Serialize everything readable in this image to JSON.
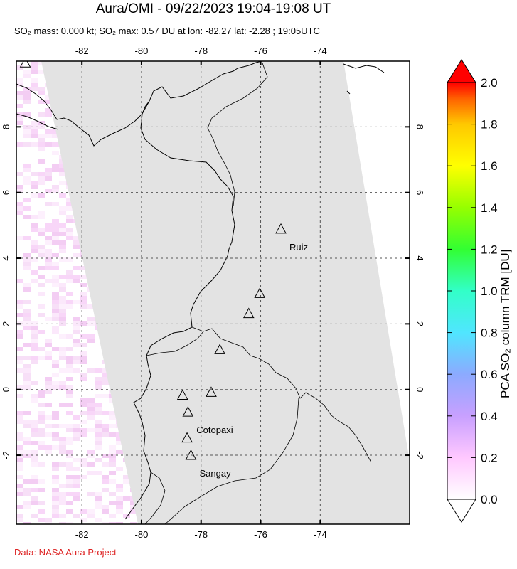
{
  "header": {
    "title": "Aura/OMI - 09/22/2023 19:04-19:08 UT",
    "subtitle": "SO₂ mass: 0.000 kt; SO₂ max: 0.57 DU at lon: -82.27 lat: -2.28 ; 19:05UTC"
  },
  "map": {
    "lon_ticks": [
      "-82",
      "-80",
      "-78",
      "-76",
      "-74"
    ],
    "lat_ticks": [
      "8",
      "6",
      "4",
      "2",
      "0",
      "-2"
    ],
    "lon_range": [
      -84.2,
      -71.0
    ],
    "lat_range": [
      -4.1,
      10.0
    ],
    "swath_color": "#e3e3e3",
    "volcanoes": [
      {
        "name": "Ruiz",
        "lon": -75.32,
        "lat": 4.89,
        "labeled": true
      },
      {
        "name": "",
        "lon": -76.03,
        "lat": 2.93,
        "labeled": false
      },
      {
        "name": "",
        "lon": -76.4,
        "lat": 2.32,
        "labeled": false
      },
      {
        "name": "",
        "lon": -77.37,
        "lat": 1.22,
        "labeled": false
      },
      {
        "name": "",
        "lon": -77.66,
        "lat": -0.08,
        "labeled": false
      },
      {
        "name": "",
        "lon": -78.62,
        "lat": -0.17,
        "labeled": false
      },
      {
        "name": "Cotopaxi",
        "lon": -78.44,
        "lat": -0.68,
        "labeled": true
      },
      {
        "name": "",
        "lon": -78.47,
        "lat": -1.47,
        "labeled": false
      },
      {
        "name": "Sangay",
        "lon": -78.34,
        "lat": -2.0,
        "labeled": true
      },
      {
        "name": "",
        "lon": -83.9,
        "lat": 9.95,
        "labeled": false
      }
    ]
  },
  "colorbar": {
    "title": "PCA SO₂ column TRM [DU]",
    "ticks": [
      "2.0",
      "1.8",
      "1.6",
      "1.4",
      "1.2",
      "1.0",
      "0.8",
      "0.6",
      "0.4",
      "0.2",
      "0.0"
    ],
    "colors": [
      "#ffffff",
      "#ffc8ff",
      "#c8a0ff",
      "#8caaff",
      "#50e6ff",
      "#32ffc8",
      "#32ff32",
      "#96ff00",
      "#ffff00",
      "#ffc800",
      "#ff6400",
      "#ff0000"
    ]
  },
  "footer": {
    "credit": "Data: NASA Aura Project"
  }
}
